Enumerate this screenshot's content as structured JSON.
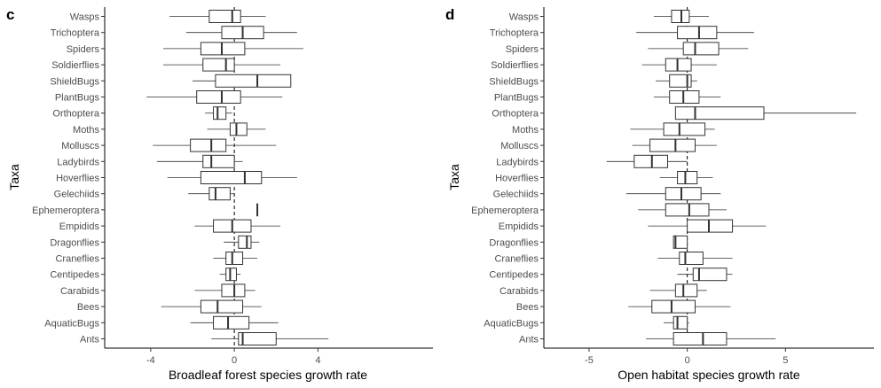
{
  "chart_data": [
    {
      "type": "boxplot",
      "panel_label": "c",
      "xlabel": "Broadleaf forest species growth rate",
      "ylabel": "Taxa",
      "xlim": [
        -6.2,
        9.5
      ],
      "xticks": [
        -4,
        0,
        4
      ],
      "reference_line_x": 0,
      "categories": [
        "Wasps",
        "Trichoptera",
        "Spiders",
        "Soldierflies",
        "ShieldBugs",
        "PlantBugs",
        "Orthoptera",
        "Moths",
        "Molluscs",
        "Ladybirds",
        "Hoverflies",
        "Gelechiids",
        "Ephemeroptera",
        "Empidids",
        "Dragonflies",
        "Craneflies",
        "Centipedes",
        "Carabids",
        "Bees",
        "AquaticBugs",
        "Ants"
      ],
      "boxes": [
        {
          "min": -3.1,
          "q1": -1.2,
          "median": -0.1,
          "q3": 0.3,
          "max": 1.5
        },
        {
          "min": -2.3,
          "q1": -0.6,
          "median": 0.4,
          "q3": 1.4,
          "max": 3.0
        },
        {
          "min": -3.4,
          "q1": -1.6,
          "median": -0.6,
          "q3": 0.5,
          "max": 3.3
        },
        {
          "min": -3.4,
          "q1": -1.5,
          "median": -0.4,
          "q3": 0.0,
          "max": 2.2
        },
        {
          "min": -2.0,
          "q1": -0.9,
          "median": 1.1,
          "q3": 2.7,
          "max": 2.7
        },
        {
          "min": -4.2,
          "q1": -1.8,
          "median": -0.6,
          "q3": 0.3,
          "max": 2.3
        },
        {
          "min": -1.4,
          "q1": -1.0,
          "median": -0.8,
          "q3": -0.4,
          "max": -0.1
        },
        {
          "min": -1.3,
          "q1": -0.2,
          "median": 0.1,
          "q3": 0.6,
          "max": 1.5
        },
        {
          "min": -3.9,
          "q1": -2.1,
          "median": -1.1,
          "q3": -0.4,
          "max": 2.0
        },
        {
          "min": -3.7,
          "q1": -1.5,
          "median": -1.1,
          "q3": 0.0,
          "max": 0.4
        },
        {
          "min": -3.2,
          "q1": -1.6,
          "median": 0.5,
          "q3": 1.3,
          "max": 3.0
        },
        {
          "min": -2.2,
          "q1": -1.2,
          "median": -0.9,
          "q3": -0.2,
          "max": 0.0
        },
        {
          "min": 1.1,
          "q1": 1.1,
          "median": 1.1,
          "q3": 1.1,
          "max": 1.1
        },
        {
          "min": -1.9,
          "q1": -1.0,
          "median": -0.1,
          "q3": 0.8,
          "max": 2.2
        },
        {
          "min": -0.5,
          "q1": 0.2,
          "median": 0.6,
          "q3": 0.8,
          "max": 1.2
        },
        {
          "min": -1.0,
          "q1": -0.4,
          "median": -0.1,
          "q3": 0.4,
          "max": 1.1
        },
        {
          "min": -0.7,
          "q1": -0.4,
          "median": -0.2,
          "q3": 0.1,
          "max": 0.3
        },
        {
          "min": -1.9,
          "q1": -0.6,
          "median": 0.0,
          "q3": 0.5,
          "max": 1.0
        },
        {
          "min": -3.5,
          "q1": -1.6,
          "median": -0.8,
          "q3": 0.4,
          "max": 1.3
        },
        {
          "min": -2.1,
          "q1": -1.0,
          "median": -0.3,
          "q3": 0.7,
          "max": 2.1
        },
        {
          "min": -1.1,
          "q1": 0.2,
          "median": 0.4,
          "q3": 2.0,
          "max": 4.5
        }
      ]
    },
    {
      "type": "boxplot",
      "panel_label": "d",
      "xlabel": "Open habitat species growth rate",
      "ylabel": "Taxa",
      "xlim": [
        -7.3,
        9.5
      ],
      "xticks": [
        -5,
        0,
        5
      ],
      "reference_line_x": 0,
      "categories": [
        "Wasps",
        "Trichoptera",
        "Spiders",
        "Soldierflies",
        "ShieldBugs",
        "PlantBugs",
        "Orthoptera",
        "Moths",
        "Molluscs",
        "Ladybirds",
        "Hoverflies",
        "Gelechiids",
        "Ephemeroptera",
        "Empidids",
        "Dragonflies",
        "Craneflies",
        "Centipedes",
        "Carabids",
        "Bees",
        "AquaticBugs",
        "Ants"
      ],
      "boxes": [
        {
          "min": -1.7,
          "q1": -0.8,
          "median": -0.3,
          "q3": 0.1,
          "max": 1.1
        },
        {
          "min": -2.6,
          "q1": -0.5,
          "median": 0.6,
          "q3": 1.5,
          "max": 3.4
        },
        {
          "min": -2.0,
          "q1": -0.2,
          "median": 0.4,
          "q3": 1.6,
          "max": 3.1
        },
        {
          "min": -2.3,
          "q1": -1.1,
          "median": -0.5,
          "q3": 0.2,
          "max": 1.5
        },
        {
          "min": -1.6,
          "q1": -0.9,
          "median": 0.0,
          "q3": 0.2,
          "max": 0.5
        },
        {
          "min": -1.7,
          "q1": -0.9,
          "median": -0.2,
          "q3": 0.6,
          "max": 1.7
        },
        {
          "min": -0.6,
          "q1": -0.6,
          "median": 0.4,
          "q3": 3.9,
          "max": 8.6
        },
        {
          "min": -2.9,
          "q1": -1.2,
          "median": -0.4,
          "q3": 0.9,
          "max": 1.4
        },
        {
          "min": -2.8,
          "q1": -1.9,
          "median": -0.6,
          "q3": 0.4,
          "max": 1.5
        },
        {
          "min": -4.1,
          "q1": -2.7,
          "median": -1.8,
          "q3": -1.0,
          "max": 0.0
        },
        {
          "min": -1.4,
          "q1": -0.5,
          "median": -0.1,
          "q3": 0.5,
          "max": 1.3
        },
        {
          "min": -3.1,
          "q1": -1.1,
          "median": -0.3,
          "q3": 0.7,
          "max": 1.7
        },
        {
          "min": -2.5,
          "q1": -1.1,
          "median": 0.1,
          "q3": 1.1,
          "max": 2.0
        },
        {
          "min": -2.0,
          "q1": 0.0,
          "median": 1.1,
          "q3": 2.3,
          "max": 4.0
        },
        {
          "min": -0.7,
          "q1": -0.7,
          "median": -0.6,
          "q3": 0.0,
          "max": 0.0
        },
        {
          "min": -1.5,
          "q1": -0.4,
          "median": -0.1,
          "q3": 0.8,
          "max": 2.3
        },
        {
          "min": -0.5,
          "q1": 0.3,
          "median": 0.6,
          "q3": 2.0,
          "max": 2.3
        },
        {
          "min": -1.9,
          "q1": -0.6,
          "median": -0.2,
          "q3": 0.5,
          "max": 1.0
        },
        {
          "min": -3.0,
          "q1": -1.8,
          "median": -0.8,
          "q3": 0.4,
          "max": 2.2
        },
        {
          "min": -1.2,
          "q1": -0.7,
          "median": -0.5,
          "q3": 0.0,
          "max": 0.1
        },
        {
          "min": -2.1,
          "q1": -0.7,
          "median": 0.8,
          "q3": 2.0,
          "max": 4.5
        }
      ]
    }
  ]
}
